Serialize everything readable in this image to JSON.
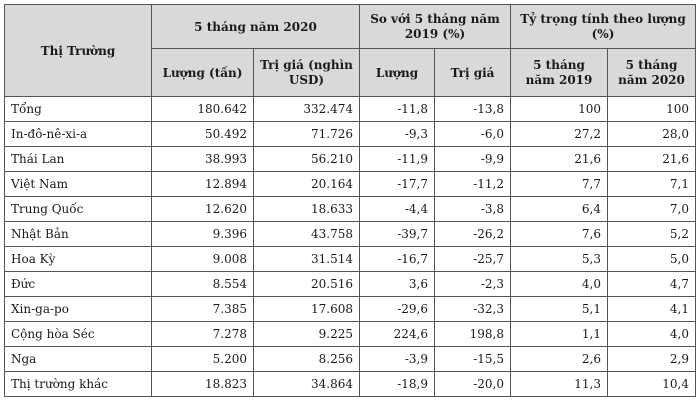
{
  "table": {
    "header": {
      "market": "Thị Trường",
      "group_5months": "5 tháng năm 2020",
      "group_compare": "So với 5 tháng năm 2019 (%)",
      "group_share": "Tỷ trọng tính theo lượng (%)",
      "volume": "Lượng (tấn)",
      "value": "Trị giá (nghìn USD)",
      "cmp_volume": "Lượng",
      "cmp_value": "Trị giá",
      "share_2019": "5 tháng năm 2019",
      "share_2020": "5 tháng năm 2020"
    },
    "rows": [
      {
        "market": "Tổng",
        "volume": "180.642",
        "value": "332.474",
        "cmp_volume": "-11,8",
        "cmp_value": "-13,8",
        "share_2019": "100",
        "share_2020": "100"
      },
      {
        "market": "In-đô-nê-xi-a",
        "volume": "50.492",
        "value": "71.726",
        "cmp_volume": "-9,3",
        "cmp_value": "-6,0",
        "share_2019": "27,2",
        "share_2020": "28,0"
      },
      {
        "market": "Thái Lan",
        "volume": "38.993",
        "value": "56.210",
        "cmp_volume": "-11,9",
        "cmp_value": "-9,9",
        "share_2019": "21,6",
        "share_2020": "21,6"
      },
      {
        "market": "Việt Nam",
        "volume": "12.894",
        "value": "20.164",
        "cmp_volume": "-17,7",
        "cmp_value": "-11,2",
        "share_2019": "7,7",
        "share_2020": "7,1"
      },
      {
        "market": "Trung Quốc",
        "volume": "12.620",
        "value": "18.633",
        "cmp_volume": "-4,4",
        "cmp_value": "-3,8",
        "share_2019": "6,4",
        "share_2020": "7,0"
      },
      {
        "market": "Nhật Bản",
        "volume": "9.396",
        "value": "43.758",
        "cmp_volume": "-39,7",
        "cmp_value": "-26,2",
        "share_2019": "7,6",
        "share_2020": "5,2"
      },
      {
        "market": "Hoa Kỳ",
        "volume": "9.008",
        "value": "31.514",
        "cmp_volume": "-16,7",
        "cmp_value": "-25,7",
        "share_2019": "5,3",
        "share_2020": "5,0"
      },
      {
        "market": "Đức",
        "volume": "8.554",
        "value": "20.516",
        "cmp_volume": "3,6",
        "cmp_value": "-2,3",
        "share_2019": "4,0",
        "share_2020": "4,7"
      },
      {
        "market": "Xin-ga-po",
        "volume": "7.385",
        "value": "17.608",
        "cmp_volume": "-29,6",
        "cmp_value": "-32,3",
        "share_2019": "5,1",
        "share_2020": "4,1"
      },
      {
        "market": "Cộng hòa Séc",
        "volume": "7.278",
        "value": "9.225",
        "cmp_volume": "224,6",
        "cmp_value": "198,8",
        "share_2019": "1,1",
        "share_2020": "4,0"
      },
      {
        "market": "Nga",
        "volume": "5.200",
        "value": "8.256",
        "cmp_volume": "-3,9",
        "cmp_value": "-15,5",
        "share_2019": "2,6",
        "share_2020": "2,9"
      },
      {
        "market": "Thị trường khác",
        "volume": "18.823",
        "value": "34.864",
        "cmp_volume": "-18,9",
        "cmp_value": "-20,0",
        "share_2019": "11,3",
        "share_2020": "10,4"
      }
    ]
  }
}
